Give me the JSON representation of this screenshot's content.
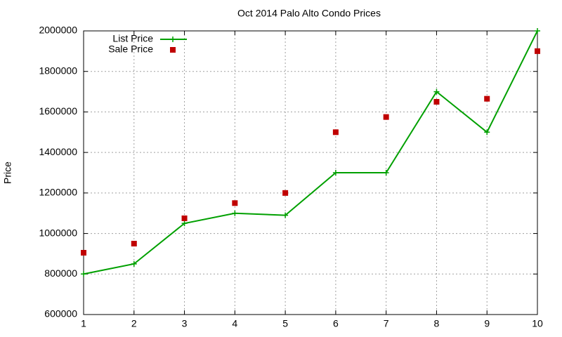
{
  "chart_data": {
    "type": "line",
    "title": "Oct 2014 Palo Alto Condo Prices",
    "y_label": "Price",
    "x": [
      1,
      2,
      3,
      4,
      5,
      6,
      7,
      8,
      9,
      10
    ],
    "series": [
      {
        "name": "List Price",
        "color": "#00a000",
        "style": "linespoints",
        "marker": "plus",
        "values": [
          800000,
          850000,
          1050000,
          1100000,
          1090000,
          1300000,
          1300000,
          1700000,
          1500000,
          2000000
        ]
      },
      {
        "name": "Sale Price",
        "color": "#c00000",
        "style": "points",
        "marker": "square",
        "values": [
          905000,
          950000,
          1075000,
          1150000,
          1200000,
          1500000,
          1575000,
          1650000,
          1665000,
          1900000
        ]
      }
    ],
    "xlim": [
      1,
      10
    ],
    "xticks": [
      1,
      2,
      3,
      4,
      5,
      6,
      7,
      8,
      9,
      10
    ],
    "ylim": [
      600000,
      2000000
    ],
    "yticks": [
      600000,
      800000,
      1000000,
      1200000,
      1400000,
      1600000,
      1800000,
      2000000
    ],
    "grid": true,
    "legend": "top-left"
  }
}
